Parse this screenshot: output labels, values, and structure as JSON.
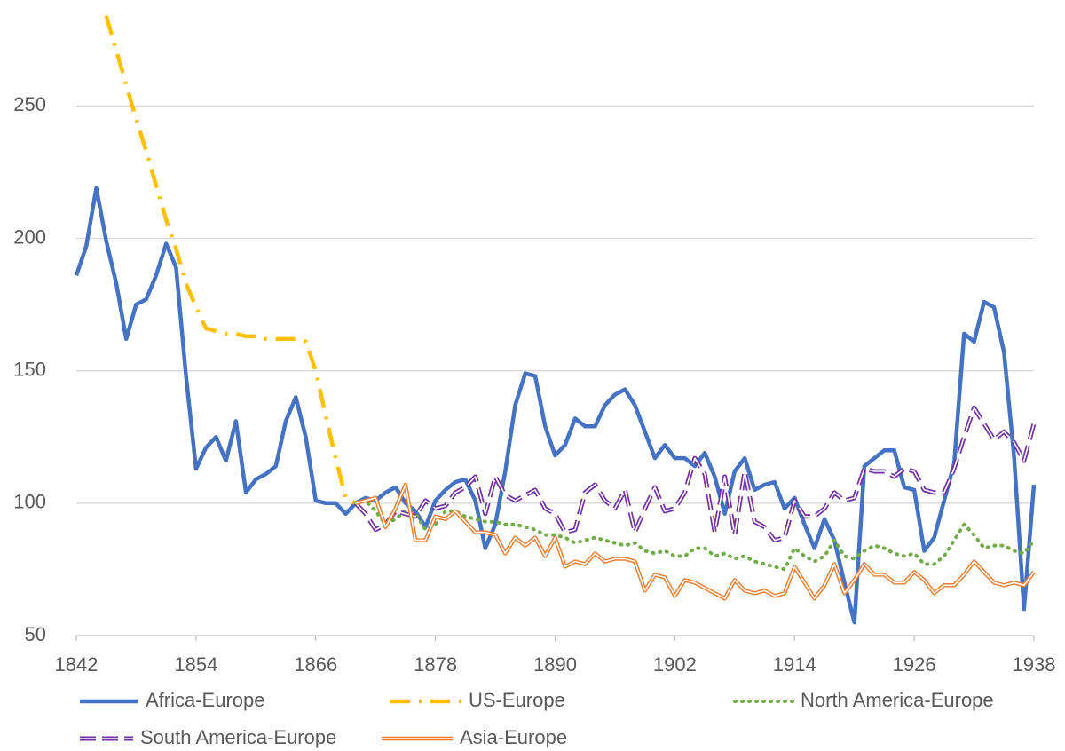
{
  "chart_data": {
    "type": "line",
    "x": [
      1842,
      1843,
      1844,
      1845,
      1846,
      1847,
      1848,
      1849,
      1850,
      1851,
      1852,
      1853,
      1854,
      1855,
      1856,
      1857,
      1858,
      1859,
      1860,
      1861,
      1862,
      1863,
      1864,
      1865,
      1866,
      1867,
      1868,
      1869,
      1870,
      1871,
      1872,
      1873,
      1874,
      1875,
      1876,
      1877,
      1878,
      1879,
      1880,
      1881,
      1882,
      1883,
      1884,
      1885,
      1886,
      1887,
      1888,
      1889,
      1890,
      1891,
      1892,
      1893,
      1894,
      1895,
      1896,
      1897,
      1898,
      1899,
      1900,
      1901,
      1902,
      1903,
      1904,
      1905,
      1906,
      1907,
      1908,
      1909,
      1910,
      1911,
      1912,
      1913,
      1914,
      1915,
      1916,
      1917,
      1918,
      1919,
      1920,
      1921,
      1922,
      1923,
      1924,
      1925,
      1926,
      1927,
      1928,
      1929,
      1930,
      1931,
      1932,
      1933,
      1934,
      1935,
      1936,
      1937,
      1938
    ],
    "xlim": [
      1842,
      1938
    ],
    "xticks": [
      1842,
      1854,
      1866,
      1878,
      1890,
      1902,
      1914,
      1926,
      1938
    ],
    "ylim": [
      50,
      290
    ],
    "yticks": [
      50,
      100,
      150,
      200,
      250
    ],
    "grid": true,
    "legend": "bottom",
    "series": [
      {
        "name": "Africa-Europe",
        "color": "#4472c4",
        "line_style": "solid",
        "values": [
          186,
          197,
          219,
          199,
          183,
          162,
          175,
          177,
          186,
          198,
          189,
          148,
          113,
          121,
          125,
          116,
          131,
          104,
          109,
          111,
          114,
          131,
          140,
          125,
          101,
          100,
          100,
          96,
          100,
          102,
          101,
          104,
          106,
          100,
          97,
          91,
          101,
          105,
          108,
          109,
          101,
          83,
          92,
          112,
          137,
          149,
          148,
          129,
          118,
          122,
          132,
          129,
          129,
          137,
          141,
          143,
          137,
          127,
          117,
          122,
          117,
          117,
          114,
          119,
          110,
          96,
          112,
          117,
          105,
          107,
          108,
          98,
          102,
          92,
          83,
          94,
          86,
          70,
          55,
          114,
          117,
          120,
          120,
          106,
          105,
          82,
          87,
          101,
          115,
          164,
          161,
          176,
          174,
          157,
          118,
          60,
          107
        ]
      },
      {
        "name": "US-Europe",
        "color": "#ffc000",
        "line_style": "dash-dot",
        "values": [
          null,
          null,
          null,
          284,
          271,
          258,
          245,
          233,
          220,
          207,
          196,
          183,
          174,
          166,
          165,
          164,
          164,
          163,
          163,
          162,
          162,
          162,
          162,
          161,
          150,
          133,
          117,
          102,
          100,
          null,
          null,
          null,
          null,
          null,
          null,
          null,
          null,
          null,
          null,
          null,
          null,
          null,
          null,
          null,
          null,
          null,
          null,
          null,
          null,
          null,
          null,
          null,
          null,
          null,
          null,
          null,
          null,
          null,
          null,
          null,
          null,
          null,
          null,
          null,
          null,
          null,
          null,
          null,
          null,
          null,
          null,
          null,
          null,
          null,
          null,
          null,
          null,
          null,
          null,
          null,
          null,
          null,
          null,
          null,
          null,
          null,
          null,
          null,
          null,
          null,
          null,
          null,
          null,
          null,
          null,
          null,
          null
        ]
      },
      {
        "name": "North America-Europe",
        "color": "#70ad47",
        "line_style": "dotted",
        "values": [
          null,
          null,
          null,
          null,
          null,
          null,
          null,
          null,
          null,
          null,
          null,
          null,
          null,
          null,
          null,
          null,
          null,
          null,
          null,
          null,
          null,
          null,
          null,
          null,
          null,
          null,
          null,
          null,
          100,
          101,
          97,
          92,
          94,
          97,
          96,
          90,
          92,
          97,
          97,
          95,
          94,
          93,
          93,
          92,
          92,
          91,
          90,
          88,
          88,
          87,
          85,
          86,
          87,
          86,
          85,
          84,
          85,
          82,
          81,
          82,
          80,
          80,
          83,
          83,
          80,
          81,
          79,
          80,
          78,
          77,
          76,
          75,
          83,
          80,
          78,
          80,
          86,
          80,
          79,
          82,
          84,
          83,
          81,
          80,
          81,
          77,
          77,
          80,
          86,
          92,
          88,
          83,
          84,
          84,
          82,
          81,
          86
        ]
      },
      {
        "name": "South America-Europe",
        "color": "#7030a0",
        "line_style": "dashed-double",
        "values": [
          null,
          null,
          null,
          null,
          null,
          null,
          null,
          null,
          null,
          null,
          null,
          null,
          null,
          null,
          null,
          null,
          null,
          null,
          null,
          null,
          null,
          null,
          null,
          null,
          null,
          null,
          null,
          null,
          100,
          96,
          90,
          92,
          97,
          96,
          95,
          101,
          98,
          99,
          104,
          106,
          110,
          96,
          110,
          103,
          101,
          103,
          105,
          98,
          96,
          89,
          90,
          104,
          107,
          101,
          98,
          105,
          89,
          98,
          106,
          97,
          98,
          104,
          117,
          111,
          89,
          110,
          88,
          112,
          93,
          91,
          86,
          87,
          101,
          95,
          95,
          98,
          104,
          101,
          102,
          113,
          112,
          112,
          110,
          113,
          112,
          105,
          104,
          104,
          113,
          125,
          136,
          130,
          124,
          127,
          123,
          116,
          130
        ]
      },
      {
        "name": "Asia-Europe",
        "color": "#ed7d31",
        "line_style": "double",
        "values": [
          null,
          null,
          null,
          null,
          null,
          null,
          null,
          null,
          null,
          null,
          null,
          null,
          null,
          null,
          null,
          null,
          null,
          null,
          null,
          null,
          null,
          null,
          null,
          null,
          null,
          null,
          null,
          null,
          100,
          101,
          102,
          91,
          98,
          107,
          86,
          86,
          95,
          94,
          97,
          93,
          89,
          89,
          88,
          81,
          87,
          84,
          87,
          80,
          87,
          76,
          78,
          77,
          81,
          78,
          79,
          79,
          78,
          67,
          73,
          72,
          65,
          71,
          70,
          68,
          66,
          64,
          71,
          67,
          66,
          67,
          65,
          66,
          76,
          70,
          64,
          69,
          77,
          66,
          71,
          77,
          73,
          73,
          70,
          70,
          74,
          71,
          66,
          69,
          69,
          73,
          78,
          74,
          70,
          69,
          70,
          69,
          74
        ]
      }
    ]
  }
}
